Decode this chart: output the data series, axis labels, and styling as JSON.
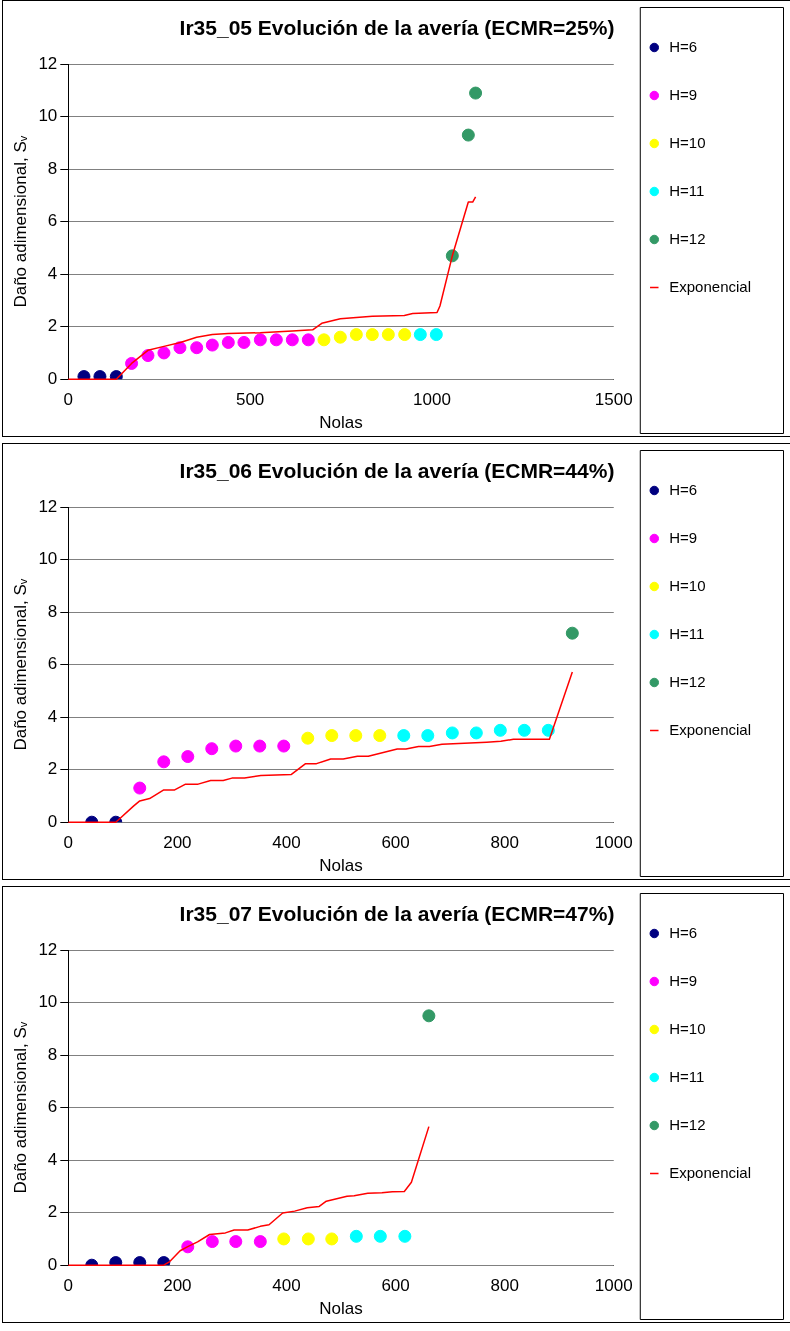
{
  "chart_data": [
    {
      "type": "scatter",
      "title": "Ir35_05 Evolución de la avería (ECMR=25%)",
      "xlabel": "Nolas",
      "ylabel": "Daño adimensional, Sᵥ",
      "xlim": [
        0,
        1500
      ],
      "xticks": [
        0,
        500,
        1000,
        1500
      ],
      "ylim": [
        0,
        12
      ],
      "yticks": [
        0,
        2,
        4,
        6,
        8,
        10,
        12
      ],
      "grid": "y",
      "legend": "right",
      "marker": "circle",
      "series": [
        {
          "name": "H=6",
          "color": "#000080",
          "x": [
            43,
            87,
            132
          ],
          "values": [
            0.1,
            0.1,
            0.1
          ]
        },
        {
          "name": "H=9",
          "color": "#ff00ff",
          "x": [
            174,
            219,
            263,
            307,
            353,
            396,
            440,
            483,
            528,
            572,
            616,
            660
          ],
          "values": [
            0.6,
            0.9,
            1.0,
            1.2,
            1.2,
            1.3,
            1.4,
            1.4,
            1.5,
            1.5,
            1.5,
            1.5
          ]
        },
        {
          "name": "H=10",
          "color": "#ffff00",
          "x": [
            703,
            748,
            792,
            836,
            880,
            925
          ],
          "values": [
            1.5,
            1.6,
            1.7,
            1.7,
            1.7,
            1.7
          ]
        },
        {
          "name": "H=11",
          "color": "#00ffff",
          "x": [
            968,
            1012
          ],
          "values": [
            1.7,
            1.7
          ]
        },
        {
          "name": "H=12",
          "color": "#339966",
          "x": [
            1056,
            1100,
            1120
          ],
          "values": [
            4.7,
            9.3,
            10.9
          ]
        },
        {
          "name": "Exponencial",
          "type": "line",
          "marker": "none",
          "color": "#ff0000",
          "x": [
            0,
            132,
            174,
            219,
            263,
            308,
            353,
            396,
            440,
            528,
            616,
            672,
            697,
            748,
            836,
            924,
            947,
            1014,
            1022,
            1056,
            1100,
            1112,
            1120
          ],
          "values": [
            0,
            0,
            0.6,
            1.1,
            1.25,
            1.4,
            1.6,
            1.7,
            1.74,
            1.77,
            1.84,
            1.88,
            2.13,
            2.3,
            2.4,
            2.43,
            2.5,
            2.54,
            2.79,
            4.7,
            6.75,
            6.75,
            6.95
          ]
        }
      ]
    },
    {
      "type": "scatter",
      "title": "Ir35_06 Evolución de la avería (ECMR=44%)",
      "xlabel": "Nolas",
      "ylabel": "Daño adimensional, Sᵥ",
      "xlim": [
        0,
        1000
      ],
      "xticks": [
        0,
        200,
        400,
        600,
        800,
        1000
      ],
      "ylim": [
        0,
        12
      ],
      "yticks": [
        0,
        2,
        4,
        6,
        8,
        10,
        12
      ],
      "grid": "y",
      "legend": "right",
      "marker": "circle",
      "series": [
        {
          "name": "H=6",
          "color": "#000080",
          "x": [
            43,
            87
          ],
          "values": [
            0,
            0
          ]
        },
        {
          "name": "H=9",
          "color": "#ff00ff",
          "x": [
            131,
            175,
            219,
            263,
            307,
            351,
            395
          ],
          "values": [
            1.3,
            2.3,
            2.5,
            2.8,
            2.9,
            2.9,
            2.9
          ]
        },
        {
          "name": "H=10",
          "color": "#ffff00",
          "x": [
            439,
            483,
            527,
            571
          ],
          "values": [
            3.2,
            3.3,
            3.3,
            3.3
          ]
        },
        {
          "name": "H=11",
          "color": "#00ffff",
          "x": [
            615,
            659,
            704,
            748,
            792,
            836,
            880
          ],
          "values": [
            3.3,
            3.3,
            3.4,
            3.4,
            3.5,
            3.5,
            3.5
          ]
        },
        {
          "name": "H=12",
          "color": "#339966",
          "x": [
            924
          ],
          "values": [
            7.2
          ]
        },
        {
          "name": "Exponencial",
          "type": "line",
          "marker": "none",
          "color": "#ff0000",
          "x": [
            0,
            87,
            120,
            131,
            149,
            175,
            195,
            215,
            238,
            261,
            284,
            300,
            323,
            353,
            409,
            435,
            455,
            481,
            504,
            530,
            550,
            603,
            619,
            642,
            662,
            685,
            767,
            793,
            816,
            882,
            924
          ],
          "values": [
            0,
            0,
            0.62,
            0.81,
            0.9,
            1.23,
            1.23,
            1.45,
            1.45,
            1.59,
            1.59,
            1.68,
            1.68,
            1.78,
            1.82,
            2.23,
            2.23,
            2.41,
            2.41,
            2.51,
            2.51,
            2.79,
            2.79,
            2.88,
            2.88,
            2.97,
            3.05,
            3.08,
            3.16,
            3.16,
            5.72
          ]
        }
      ]
    },
    {
      "type": "scatter",
      "title": "Ir35_07 Evolución de la avería (ECMR=47%)",
      "xlabel": "Nolas",
      "ylabel": "Daño adimensional, Sᵥ",
      "xlim": [
        0,
        1000
      ],
      "xticks": [
        0,
        200,
        400,
        600,
        800,
        1000
      ],
      "ylim": [
        0,
        12
      ],
      "yticks": [
        0,
        2,
        4,
        6,
        8,
        10,
        12
      ],
      "grid": "y",
      "legend": "right",
      "marker": "circle",
      "series": [
        {
          "name": "H=6",
          "color": "#000080",
          "x": [
            43,
            87,
            131,
            175
          ],
          "values": [
            0,
            0.1,
            0.1,
            0.1
          ]
        },
        {
          "name": "H=9",
          "color": "#ff00ff",
          "x": [
            219,
            264,
            307,
            352
          ],
          "values": [
            0.7,
            0.9,
            0.9,
            0.9
          ]
        },
        {
          "name": "H=10",
          "color": "#ffff00",
          "x": [
            395,
            440,
            483
          ],
          "values": [
            1.0,
            1.0,
            1.0
          ]
        },
        {
          "name": "H=11",
          "color": "#00ffff",
          "x": [
            528,
            572,
            617
          ],
          "values": [
            1.1,
            1.1,
            1.1
          ]
        },
        {
          "name": "H=12",
          "color": "#339966",
          "x": [
            661
          ],
          "values": [
            9.5
          ]
        },
        {
          "name": "Exponencial",
          "type": "line",
          "marker": "none",
          "color": "#ff0000",
          "x": [
            0,
            175,
            186,
            205,
            219,
            237,
            259,
            288,
            304,
            329,
            352,
            368,
            393,
            415,
            438,
            460,
            473,
            511,
            524,
            549,
            575,
            594,
            616,
            629,
            661
          ],
          "values": [
            0,
            0,
            0.14,
            0.55,
            0.71,
            0.89,
            1.17,
            1.23,
            1.34,
            1.34,
            1.48,
            1.54,
            1.99,
            2.06,
            2.19,
            2.24,
            2.44,
            2.63,
            2.65,
            2.74,
            2.76,
            2.8,
            2.81,
            3.16,
            5.28
          ]
        }
      ]
    }
  ]
}
